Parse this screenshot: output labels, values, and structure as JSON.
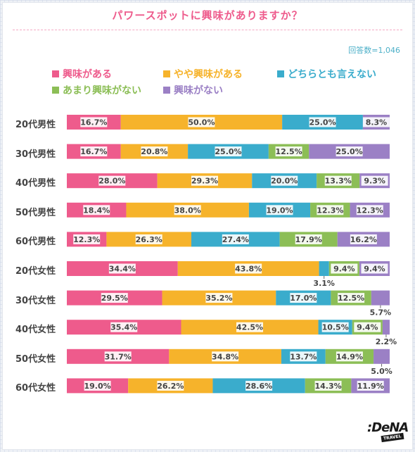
{
  "title": "パワースポットに興味がありますか？",
  "respondents": "回答数=1,046",
  "colors": {
    "interested": "#ee5b8c",
    "somewhat": "#f6b32b",
    "neutral": "#3aaccc",
    "not_much": "#8cbe56",
    "not": "#9b80c5",
    "title": "#ee5b8c"
  },
  "logo": "DeNA TRAVEL",
  "chart_data": {
    "type": "bar",
    "orientation": "horizontal",
    "stacked": true,
    "normalized": true,
    "categories": [
      "20代男性",
      "30代男性",
      "40代男性",
      "50代男性",
      "60代男性",
      "20代女性",
      "30代女性",
      "40代女性",
      "50代女性",
      "60代女性"
    ],
    "series": [
      {
        "name": "興味がある",
        "values": [
          16.7,
          16.7,
          28.0,
          18.4,
          12.3,
          34.4,
          29.5,
          35.4,
          31.7,
          19.0
        ]
      },
      {
        "name": "やや興味がある",
        "values": [
          50.0,
          20.8,
          29.3,
          38.0,
          26.3,
          43.8,
          35.2,
          42.5,
          34.8,
          26.2
        ]
      },
      {
        "name": "どちらとも言えない",
        "values": [
          25.0,
          25.0,
          20.0,
          19.0,
          27.4,
          3.1,
          17.0,
          10.5,
          13.7,
          28.6
        ]
      },
      {
        "name": "あまり興味がない",
        "values": [
          0,
          12.5,
          13.3,
          12.3,
          17.9,
          9.4,
          12.5,
          9.4,
          14.9,
          14.3
        ]
      },
      {
        "name": "興味がない",
        "values": [
          8.3,
          25.0,
          9.3,
          12.3,
          16.2,
          9.4,
          5.7,
          2.2,
          5.0,
          11.9
        ]
      }
    ],
    "value_suffix": "%",
    "xlim": [
      0,
      100
    ],
    "legend_position": "top"
  }
}
